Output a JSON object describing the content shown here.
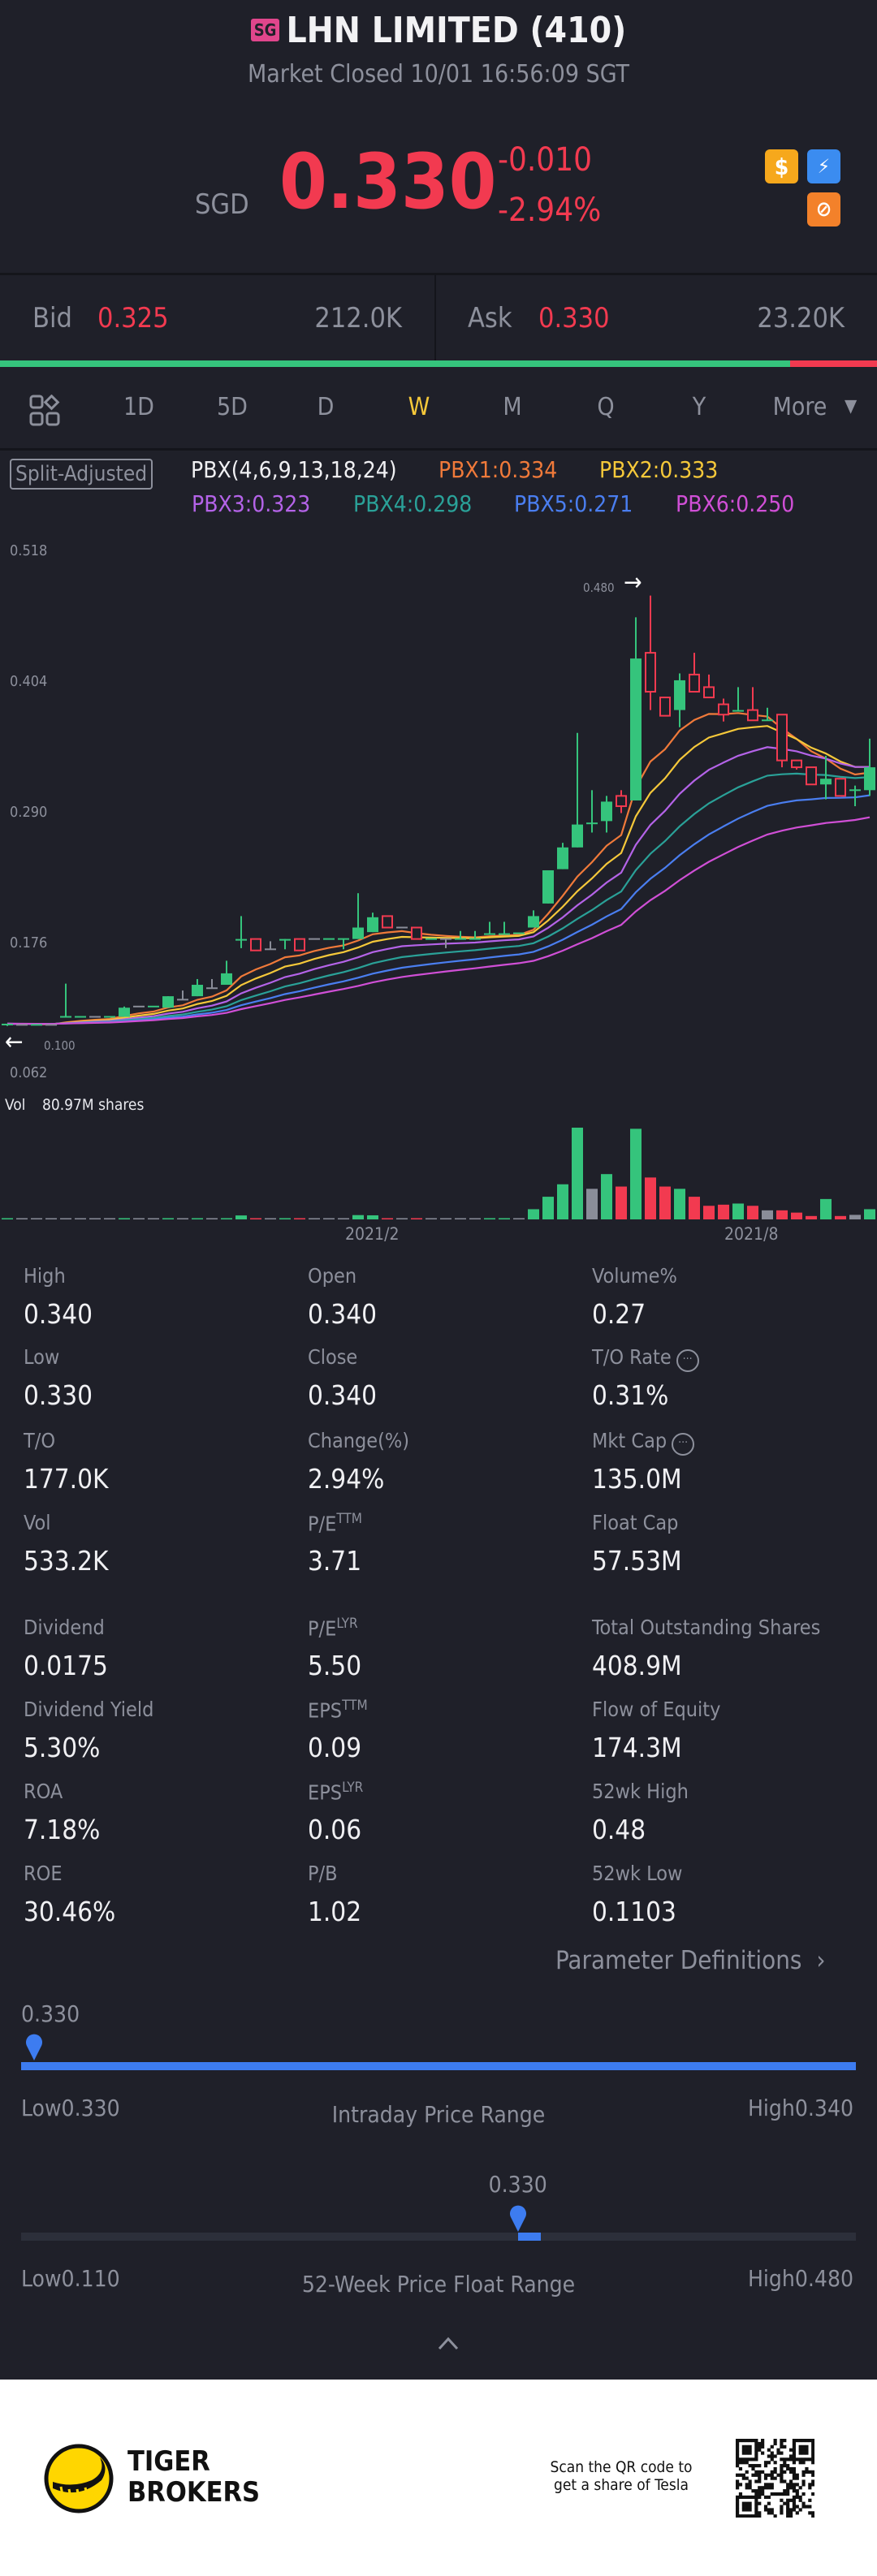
{
  "header": {
    "market_badge": "SG",
    "title": "LHN LIMITED (410)",
    "status": "Market Closed 10/01 16:56:09 SGT",
    "currency": "SGD",
    "price": "0.330",
    "change": "-0.010",
    "change_pct": "-2.94%",
    "icons": [
      "dollar-badge-icon",
      "flash-badge-icon",
      "no-short-badge-icon"
    ]
  },
  "quote": {
    "bid_label": "Bid",
    "bid_price": "0.325",
    "bid_size": "212.0K",
    "ask_label": "Ask",
    "ask_price": "0.330",
    "ask_size": "23.20K",
    "bid_share_pct": 90.1
  },
  "tabs": {
    "items": [
      "1D",
      "5D",
      "D",
      "W",
      "M",
      "Q",
      "Y",
      "More"
    ],
    "active": "W"
  },
  "indicator": {
    "adjust_label": "Split-Adjusted",
    "name": "PBX(4,6,9,13,18,24)",
    "lines": [
      {
        "label": "PBX1:0.334",
        "color": "#f07a3a"
      },
      {
        "label": "PBX2:0.333",
        "color": "#f5c83a"
      },
      {
        "label": "PBX3:0.323",
        "color": "#b463e8"
      },
      {
        "label": "PBX4:0.298",
        "color": "#2aa198"
      },
      {
        "label": "PBX5:0.271",
        "color": "#4a7ef0"
      },
      {
        "label": "PBX6:0.250",
        "color": "#d04fd6"
      }
    ]
  },
  "chart_data": {
    "type": "candlestick",
    "interval": "weekly",
    "y_ticks": [
      "0.518",
      "0.404",
      "0.290",
      "0.176",
      "0.062"
    ],
    "ylim": [
      0.062,
      0.518
    ],
    "x_ticks": [
      {
        "label": "2021/2",
        "index": 25
      },
      {
        "label": "2021/8",
        "index": 51
      }
    ],
    "high_marker": {
      "label": "0.480",
      "index": 44
    },
    "low_marker": {
      "label": "0.100"
    },
    "volume_label": "Vol",
    "volume_value": "80.97M shares",
    "up_color": "#35c47c",
    "down_color": "#f23a50",
    "flat_color": "#8a8d99",
    "ohlc": [
      [
        0.105,
        0.106,
        0.104,
        0.106
      ],
      [
        0.105,
        0.105,
        0.105,
        0.105
      ],
      [
        0.105,
        0.105,
        0.105,
        0.105
      ],
      [
        0.105,
        0.105,
        0.105,
        0.105
      ],
      [
        0.112,
        0.141,
        0.112,
        0.112
      ],
      [
        0.112,
        0.112,
        0.112,
        0.112
      ],
      [
        0.112,
        0.112,
        0.112,
        0.112
      ],
      [
        0.112,
        0.112,
        0.112,
        0.112
      ],
      [
        0.112,
        0.121,
        0.112,
        0.12
      ],
      [
        0.121,
        0.121,
        0.121,
        0.121
      ],
      [
        0.121,
        0.121,
        0.121,
        0.121
      ],
      [
        0.12,
        0.13,
        0.12,
        0.13
      ],
      [
        0.127,
        0.135,
        0.127,
        0.127
      ],
      [
        0.13,
        0.145,
        0.13,
        0.14
      ],
      [
        0.137,
        0.145,
        0.137,
        0.137
      ],
      [
        0.14,
        0.161,
        0.14,
        0.15
      ],
      [
        0.179,
        0.2,
        0.172,
        0.18
      ],
      [
        0.18,
        0.18,
        0.17,
        0.17
      ],
      [
        0.171,
        0.178,
        0.171,
        0.171
      ],
      [
        0.179,
        0.18,
        0.171,
        0.18
      ],
      [
        0.18,
        0.18,
        0.17,
        0.17
      ],
      [
        0.18,
        0.18,
        0.18,
        0.18
      ],
      [
        0.18,
        0.18,
        0.18,
        0.18
      ],
      [
        0.18,
        0.18,
        0.171,
        0.18
      ],
      [
        0.18,
        0.22,
        0.18,
        0.19
      ],
      [
        0.186,
        0.203,
        0.186,
        0.199
      ],
      [
        0.2,
        0.2,
        0.19,
        0.19
      ],
      [
        0.19,
        0.19,
        0.19,
        0.19
      ],
      [
        0.19,
        0.19,
        0.18,
        0.18
      ],
      [
        0.18,
        0.18,
        0.18,
        0.18
      ],
      [
        0.18,
        0.18,
        0.172,
        0.18
      ],
      [
        0.18,
        0.187,
        0.18,
        0.18
      ],
      [
        0.18,
        0.187,
        0.18,
        0.18
      ],
      [
        0.184,
        0.195,
        0.184,
        0.185
      ],
      [
        0.184,
        0.195,
        0.184,
        0.185
      ],
      [
        0.185,
        0.185,
        0.185,
        0.185
      ],
      [
        0.19,
        0.205,
        0.19,
        0.2
      ],
      [
        0.211,
        0.24,
        0.211,
        0.24
      ],
      [
        0.241,
        0.264,
        0.241,
        0.26
      ],
      [
        0.26,
        0.36,
        0.26,
        0.28
      ],
      [
        0.281,
        0.31,
        0.273,
        0.281
      ],
      [
        0.283,
        0.305,
        0.273,
        0.3
      ],
      [
        0.305,
        0.31,
        0.29,
        0.296
      ],
      [
        0.301,
        0.461,
        0.301,
        0.425
      ],
      [
        0.43,
        0.48,
        0.38,
        0.396
      ],
      [
        0.391,
        0.391,
        0.375,
        0.375
      ],
      [
        0.38,
        0.412,
        0.365,
        0.406
      ],
      [
        0.411,
        0.43,
        0.396,
        0.396
      ],
      [
        0.4,
        0.411,
        0.391,
        0.391
      ],
      [
        0.385,
        0.39,
        0.37,
        0.376
      ],
      [
        0.379,
        0.4,
        0.379,
        0.38
      ],
      [
        0.38,
        0.4,
        0.371,
        0.371
      ],
      [
        0.371,
        0.382,
        0.371,
        0.371
      ],
      [
        0.376,
        0.376,
        0.33,
        0.336
      ],
      [
        0.336,
        0.336,
        0.328,
        0.33
      ],
      [
        0.33,
        0.33,
        0.315,
        0.315
      ],
      [
        0.315,
        0.34,
        0.302,
        0.32
      ],
      [
        0.32,
        0.32,
        0.305,
        0.305
      ],
      [
        0.31,
        0.314,
        0.296,
        0.31
      ],
      [
        0.31,
        0.355,
        0.305,
        0.33
      ]
    ],
    "volume_m": [
      0.5,
      0.3,
      0.3,
      0.3,
      0.4,
      0.3,
      0.3,
      0.3,
      0.6,
      0.3,
      0.3,
      0.6,
      0.6,
      0.8,
      0.6,
      0.9,
      3.5,
      0.8,
      0.5,
      0.6,
      0.8,
      0.4,
      0.4,
      0.6,
      3.8,
      3.6,
      0.6,
      0.4,
      0.6,
      0.4,
      0.5,
      0.5,
      0.5,
      0.8,
      0.6,
      0.4,
      9,
      20,
      31,
      81,
      27,
      40,
      29,
      80,
      37,
      29,
      27,
      20,
      12,
      13,
      14,
      12,
      8,
      8,
      6,
      3,
      18,
      3,
      4,
      9
    ]
  },
  "stats": [
    [
      {
        "label": "High",
        "value": "0.340"
      },
      {
        "label": "Open",
        "value": "0.340"
      },
      {
        "label": "Volume%",
        "value": "0.27"
      }
    ],
    [
      {
        "label": "Low",
        "value": "0.330"
      },
      {
        "label": "Close",
        "value": "0.340"
      },
      {
        "label": "T/O Rate",
        "value": "0.31%",
        "info": true
      }
    ],
    [
      {
        "label": "T/O",
        "value": "177.0K"
      },
      {
        "label": "Change(%)",
        "value": "2.94%"
      },
      {
        "label": "Mkt Cap",
        "value": "135.0M",
        "info": true
      }
    ],
    [
      {
        "label": "Vol",
        "value": "533.2K"
      },
      {
        "label": "P/E",
        "sup": "TTM",
        "value": "3.71"
      },
      {
        "label": "Float Cap",
        "value": "57.53M"
      }
    ],
    [
      {
        "label": "Dividend",
        "value": "0.0175"
      },
      {
        "label": "P/E",
        "sup": "LYR",
        "value": "5.50"
      },
      {
        "label": "Total Outstanding Shares",
        "value": "408.9M"
      }
    ],
    [
      {
        "label": "Dividend Yield",
        "value": "5.30%"
      },
      {
        "label": "EPS",
        "sup": "TTM",
        "value": "0.09"
      },
      {
        "label": "Flow of Equity",
        "value": "174.3M"
      }
    ],
    [
      {
        "label": "ROA",
        "value": "7.18%"
      },
      {
        "label": "EPS",
        "sup": "LYR",
        "value": "0.06"
      },
      {
        "label": "52wk High",
        "value": "0.48"
      }
    ],
    [
      {
        "label": "ROE",
        "value": "30.46%"
      },
      {
        "label": "P/B",
        "value": "1.02"
      },
      {
        "label": "52wk Low",
        "value": "0.1103"
      }
    ]
  ],
  "param_definitions": "Parameter Definitions",
  "intraday_range": {
    "title": "Intraday Price Range",
    "current": "0.330",
    "low": "Low0.330",
    "high": "High0.340",
    "position_pct": 0
  },
  "week52_range": {
    "title": "52-Week Price Float Range",
    "current": "0.330",
    "low": "Low0.110",
    "high": "High0.480",
    "position_pct": 59.5
  },
  "footer": {
    "brand_line1": "TIGER",
    "brand_line2": "BROKERS",
    "promo_line1": "Scan the QR code to",
    "promo_line2": "get a share of Tesla"
  },
  "colors": {
    "background": "#1f2029",
    "up": "#35c47c",
    "down": "#f23a50",
    "accent": "#3d7cf0",
    "active_tab": "#f5c83a"
  }
}
